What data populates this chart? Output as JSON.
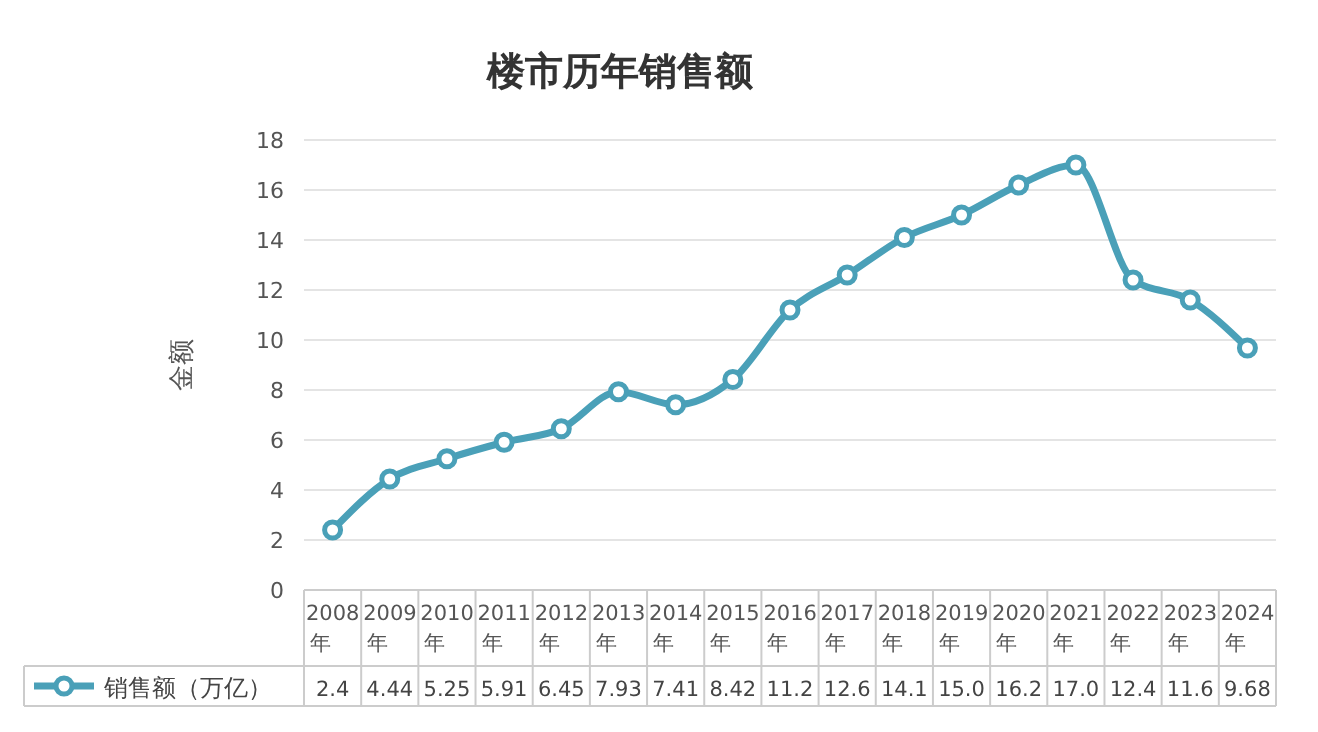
{
  "chart_data": {
    "type": "line",
    "title": "楼市历年销售额",
    "ylabel": "金额",
    "categories": [
      "2008年",
      "2009年",
      "2010年",
      "2011年",
      "2012年",
      "2013年",
      "2014年",
      "2015年",
      "2016年",
      "2017年",
      "2018年",
      "2019年",
      "2020年",
      "2021年",
      "2022年",
      "2023年",
      "2024年"
    ],
    "series": [
      {
        "name": "销售额（万亿）",
        "color": "#4aa0b8",
        "values": [
          2.4,
          4.44,
          5.25,
          5.91,
          6.45,
          7.93,
          7.41,
          8.42,
          11.2,
          12.6,
          14.1,
          15.0,
          16.2,
          17.0,
          12.4,
          11.6,
          9.68
        ],
        "value_labels": [
          "2.4",
          "4.44",
          "5.25",
          "5.91",
          "6.45",
          "7.93",
          "7.41",
          "8.42",
          "11.2",
          "12.6",
          "14.1",
          "15.0",
          "16.2",
          "17.0",
          "12.4",
          "11.6",
          "9.68"
        ]
      }
    ],
    "ylim": [
      0,
      18
    ],
    "yticks": [
      0,
      2,
      4,
      6,
      8,
      10,
      12,
      14,
      16,
      18
    ],
    "grid": "y",
    "legend": "bottom",
    "marker": "circle"
  }
}
